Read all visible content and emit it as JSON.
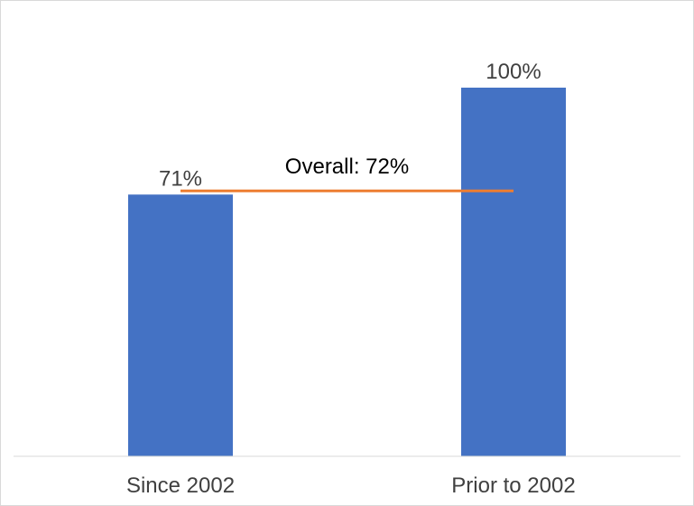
{
  "chart_data": {
    "type": "bar",
    "title": "",
    "xlabel": "",
    "ylabel": "",
    "categories": [
      "Since 2002",
      "Prior to 2002"
    ],
    "values": [
      71,
      100
    ],
    "value_labels": [
      "71%",
      "100%"
    ],
    "ylim": [
      0,
      100
    ],
    "grid": false,
    "bar_color": "#4472c4",
    "reference_line": {
      "label": "Overall: 72%",
      "value": 72,
      "color": "#ed7d31"
    }
  }
}
